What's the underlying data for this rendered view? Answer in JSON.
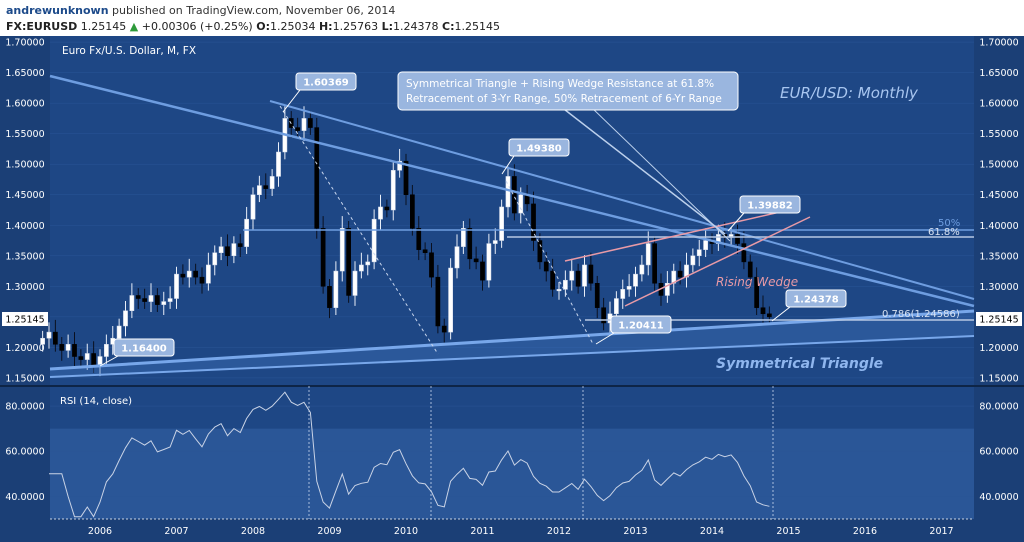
{
  "header": {
    "author": "andrewunknown",
    "published": "published on TradingView.com, November 06, 2014",
    "symbol": "FX:EURUSD",
    "last": "1.25145",
    "change_arrow": "▲",
    "change": "+0.00306 (+0.25%)",
    "o_label": "O:",
    "o": "1.25034",
    "h_label": "H:",
    "h": "1.25763",
    "l_label": "L:",
    "l": "1.24378",
    "c_label": "C:",
    "c": "1.25145"
  },
  "chart_data": {
    "type": "candlestick",
    "instrument_label": "Euro Fx/U.S. Dollar, M, FX",
    "title": "EUR/USD: Monthly",
    "ylim": [
      1.14,
      1.71
    ],
    "y_ticks": [
      "1.70000",
      "1.65000",
      "1.60000",
      "1.55000",
      "1.50000",
      "1.45000",
      "1.40000",
      "1.35000",
      "1.30000",
      "1.25000",
      "1.20000",
      "1.15000"
    ],
    "x_ticks": [
      "2006",
      "2007",
      "2008",
      "2009",
      "2010",
      "2011",
      "2012",
      "2013",
      "2014",
      "2015",
      "2016",
      "2017"
    ],
    "last_price_label": "1.25145",
    "closes": [
      1.215,
      1.225,
      1.205,
      1.195,
      1.205,
      1.185,
      1.18,
      1.19,
      1.17,
      1.185,
      1.205,
      1.215,
      1.235,
      1.26,
      1.285,
      1.28,
      1.275,
      1.285,
      1.27,
      1.275,
      1.28,
      1.32,
      1.315,
      1.325,
      1.315,
      1.305,
      1.335,
      1.355,
      1.365,
      1.35,
      1.37,
      1.365,
      1.41,
      1.45,
      1.465,
      1.46,
      1.48,
      1.52,
      1.575,
      1.56,
      1.555,
      1.575,
      1.56,
      1.395,
      1.3,
      1.265,
      1.325,
      1.395,
      1.285,
      1.325,
      1.335,
      1.34,
      1.41,
      1.43,
      1.425,
      1.49,
      1.505,
      1.45,
      1.395,
      1.36,
      1.355,
      1.315,
      1.235,
      1.225,
      1.33,
      1.365,
      1.395,
      1.345,
      1.34,
      1.31,
      1.37,
      1.375,
      1.43,
      1.48,
      1.42,
      1.45,
      1.435,
      1.375,
      1.34,
      1.325,
      1.295,
      1.295,
      1.31,
      1.325,
      1.3,
      1.335,
      1.305,
      1.265,
      1.24,
      1.255,
      1.28,
      1.295,
      1.3,
      1.32,
      1.335,
      1.37,
      1.305,
      1.285,
      1.305,
      1.325,
      1.315,
      1.335,
      1.35,
      1.36,
      1.375,
      1.37,
      1.385,
      1.38,
      1.385,
      1.37,
      1.34,
      1.315,
      1.265,
      1.255,
      1.25
    ],
    "rsi": {
      "label": "RSI (14, close)",
      "ylim": [
        30,
        88
      ],
      "y_ticks": [
        "80.0000",
        "60.0000",
        "40.0000"
      ],
      "band": [
        30,
        70
      ]
    },
    "annotations": [
      {
        "text": "1.60369"
      },
      {
        "text": "1.49380"
      },
      {
        "text": "1.39882"
      },
      {
        "text": "1.24378"
      },
      {
        "text": "1.20411"
      },
      {
        "text": "1.16400"
      },
      {
        "text": "Symmetrical Triangle + Rising Wedge Resistance at 61.8%",
        "text2": "Retracement of 3-Yr Range, 50% Retracement of 6-Yr Range"
      },
      {
        "text": "Rising Wedge"
      },
      {
        "text": "Symmetrical Triangle"
      },
      {
        "text": "50%"
      },
      {
        "text": "61.8%"
      },
      {
        "text": "0.786(1.24586)"
      }
    ],
    "colors": {
      "background": "#1e4785",
      "up_candle": "#ffffff",
      "down_candle": "#000000",
      "trendline": "#5d8fd6",
      "wedge": "#e89aa6",
      "rsi_line": "#c9d3e6"
    }
  }
}
